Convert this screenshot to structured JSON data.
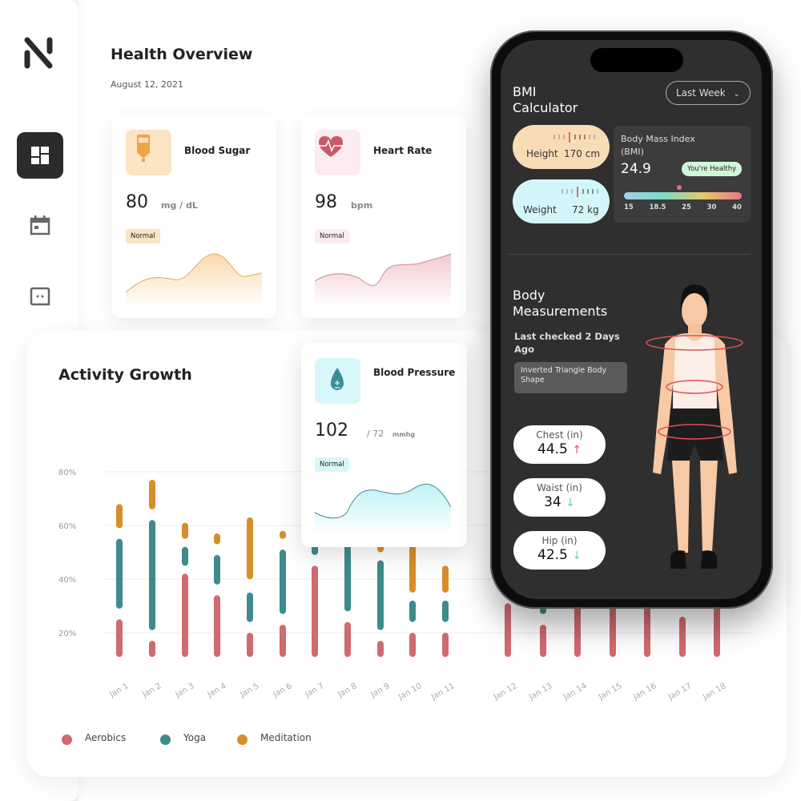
{
  "sidebar": {
    "logo": "N",
    "items": [
      {
        "icon": "dashboard-icon",
        "active": true
      },
      {
        "icon": "calendar-icon"
      },
      {
        "icon": "chat-icon"
      }
    ]
  },
  "header": {
    "title": "Health Overview",
    "date": "August 12, 2021"
  },
  "cards": [
    {
      "title": "Blood Sugar",
      "value": "80",
      "unit": "mg / dL",
      "status": "Normal",
      "icon": "glucose-meter-icon",
      "color": "#f0a44a",
      "bg": "#fbe3c4"
    },
    {
      "title": "Heart Rate",
      "value": "98",
      "unit": "bpm",
      "status": "Normal",
      "icon": "heart-pulse-icon",
      "color": "#c95a68",
      "bg": "#fcecef"
    },
    {
      "title": "Blood Pressure",
      "value": "102",
      "unit": "/ 72",
      "unit2": "mmhg",
      "status": "Normal",
      "icon": "blood-drop-icon",
      "color": "#3a8f96",
      "bg": "#d8f7fa"
    }
  ],
  "activity": {
    "title": "Activity Growth"
  },
  "chart_data": {
    "type": "bar",
    "title": "Activity Growth",
    "yticks": [
      "20%",
      "40%",
      "60%",
      "80%"
    ],
    "ylim": [
      0,
      85
    ],
    "grid": true,
    "legend_placement": "bottom-left",
    "categories": [
      "Jan 1",
      "Jan 2",
      "Jan 3",
      "Jan 4",
      "Jan 5",
      "Jan 6",
      "Jan 7",
      "Jan 8",
      "Jan 9",
      "Jan 10",
      "Jan 11",
      "Jan 12",
      "Jan 13",
      "Jan 14",
      "Jan 15",
      "Jan 16",
      "Jan 17",
      "Jan 18"
    ],
    "series": [
      {
        "name": "Aerobics",
        "color": "#cf6a70",
        "ranges": [
          [
            11,
            25
          ],
          [
            11,
            17
          ],
          [
            11,
            42
          ],
          [
            11,
            34
          ],
          [
            11,
            20
          ],
          [
            11,
            23
          ],
          [
            11,
            45
          ],
          [
            11,
            24
          ],
          [
            11,
            17
          ],
          [
            11,
            20
          ],
          [
            11,
            20
          ],
          [
            11,
            31
          ],
          [
            11,
            23
          ],
          [
            11,
            31
          ],
          [
            11,
            31
          ],
          [
            11,
            31
          ],
          [
            11,
            26
          ],
          [
            11,
            31
          ]
        ]
      },
      {
        "name": "Yoga",
        "color": "#3f8b8c",
        "ranges": [
          [
            29,
            55
          ],
          [
            21,
            62
          ],
          [
            45,
            52
          ],
          [
            38,
            49
          ],
          [
            24,
            35
          ],
          [
            27,
            51
          ],
          [
            49,
            53
          ],
          [
            28,
            55
          ],
          [
            21,
            47
          ],
          [
            24,
            32
          ],
          [
            24,
            32
          ],
          null,
          [
            27,
            30
          ],
          null,
          null,
          null,
          null,
          null
        ]
      },
      {
        "name": "Meditation",
        "color": "#d88d2b",
        "ranges": [
          [
            59,
            68
          ],
          [
            66,
            77
          ],
          [
            55,
            61
          ],
          [
            53,
            57
          ],
          [
            40,
            63
          ],
          [
            55,
            58
          ],
          null,
          null,
          [
            50,
            54
          ],
          [
            35,
            56
          ],
          [
            35,
            45
          ],
          null,
          null,
          null,
          null,
          null,
          null,
          null
        ]
      }
    ]
  },
  "phone": {
    "bmi": {
      "title_line1": "BMI",
      "title_line2": "Calculator",
      "period": "Last Week",
      "height_label": "Height",
      "height_value": "170 cm",
      "weight_label": "Weight",
      "weight_value": "72 kg",
      "index_label_line1": "Body Mass Index",
      "index_label_line2": "(BMI)",
      "index_value": "24.9",
      "status": "You're Healthy",
      "scale": [
        "15",
        "18.5",
        "25",
        "30",
        "40"
      ]
    },
    "body": {
      "title_line1": "Body",
      "title_line2": "Measurements",
      "last_checked_line1": "Last checked 2 Days",
      "last_checked_line2": "Ago",
      "shape_line1": "Inverted Triangle Body",
      "shape_line2": "Shape",
      "measurements": [
        {
          "label": "Chest (in)",
          "value": "44.5",
          "trend": "up"
        },
        {
          "label": "Waist (in)",
          "value": "34",
          "trend": "down"
        },
        {
          "label": "Hip (in)",
          "value": "42.5",
          "trend": "down"
        }
      ]
    }
  }
}
